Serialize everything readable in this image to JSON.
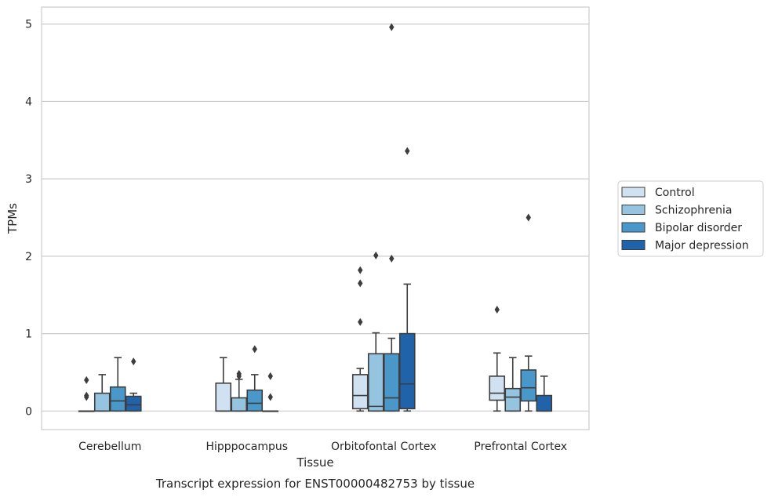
{
  "caption": "Transcript expression for ENST00000482753 by tissue",
  "chart_data": {
    "type": "box",
    "title": "",
    "xlabel": "Tissue",
    "ylabel": "TPMs",
    "ylim": [
      -0.24,
      5.22
    ],
    "yticks": [
      0,
      1,
      2,
      3,
      4,
      5
    ],
    "grid": "horizontal",
    "legend_position": "right",
    "categories": [
      "Cerebellum",
      "Hipppocampus",
      "Orbitofontal Cortex",
      "Prefrontal Cortex"
    ],
    "series": [
      {
        "name": "Control",
        "color": "#d0e1f2",
        "boxes": [
          {
            "whisker_low": 0,
            "q1": 0,
            "median": 0,
            "q3": 0,
            "whisker_high": 0,
            "outliers": [
              0.4,
              0.2,
              0.18
            ]
          },
          {
            "whisker_low": 0,
            "q1": 0,
            "median": 0,
            "q3": 0.36,
            "whisker_high": 0.69,
            "outliers": []
          },
          {
            "whisker_low": 0,
            "q1": 0.03,
            "median": 0.2,
            "q3": 0.47,
            "whisker_high": 0.55,
            "outliers": [
              1.15,
              1.65,
              1.82
            ]
          },
          {
            "whisker_low": 0,
            "q1": 0.14,
            "median": 0.23,
            "q3": 0.45,
            "whisker_high": 0.75,
            "outliers": [
              1.31
            ]
          }
        ]
      },
      {
        "name": "Schizophrenia",
        "color": "#94c4df",
        "boxes": [
          {
            "whisker_low": 0,
            "q1": 0,
            "median": 0,
            "q3": 0.23,
            "whisker_high": 0.47,
            "outliers": []
          },
          {
            "whisker_low": 0,
            "q1": 0,
            "median": 0,
            "q3": 0.17,
            "whisker_high": 0.41,
            "outliers": [
              0.48,
              0.45
            ]
          },
          {
            "whisker_low": 0,
            "q1": 0,
            "median": 0.06,
            "q3": 0.74,
            "whisker_high": 1.01,
            "outliers": [
              2.01
            ]
          },
          {
            "whisker_low": 0,
            "q1": 0,
            "median": 0.18,
            "q3": 0.29,
            "whisker_high": 0.69,
            "outliers": []
          }
        ]
      },
      {
        "name": "Bipolar disorder",
        "color": "#4a98c9",
        "boxes": [
          {
            "whisker_low": 0,
            "q1": 0,
            "median": 0.13,
            "q3": 0.31,
            "whisker_high": 0.69,
            "outliers": []
          },
          {
            "whisker_low": 0,
            "q1": 0,
            "median": 0.1,
            "q3": 0.27,
            "whisker_high": 0.47,
            "outliers": [
              0.8
            ]
          },
          {
            "whisker_low": 0,
            "q1": 0,
            "median": 0.17,
            "q3": 0.74,
            "whisker_high": 0.94,
            "outliers": [
              1.97,
              4.96
            ]
          },
          {
            "whisker_low": 0,
            "q1": 0.13,
            "median": 0.3,
            "q3": 0.53,
            "whisker_high": 0.71,
            "outliers": [
              2.5
            ]
          }
        ]
      },
      {
        "name": "Major depression",
        "color": "#2163aa",
        "boxes": [
          {
            "whisker_low": 0,
            "q1": 0,
            "median": 0.08,
            "q3": 0.19,
            "whisker_high": 0.23,
            "outliers": [
              0.64
            ]
          },
          {
            "whisker_low": 0,
            "q1": 0,
            "median": 0,
            "q3": 0,
            "whisker_high": 0,
            "outliers": [
              0.45,
              0.18
            ]
          },
          {
            "whisker_low": 0,
            "q1": 0.03,
            "median": 0.35,
            "q3": 1.0,
            "whisker_high": 1.64,
            "outliers": [
              3.36
            ]
          },
          {
            "whisker_low": 0,
            "q1": 0,
            "median": 0,
            "q3": 0.2,
            "whisker_high": 0.45,
            "outliers": []
          }
        ]
      }
    ]
  }
}
